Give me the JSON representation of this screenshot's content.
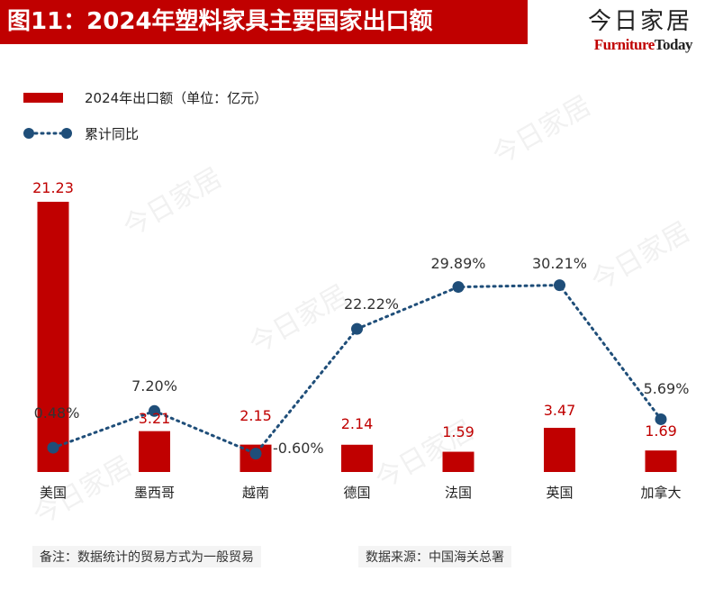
{
  "title": "图11：2024年塑料家具主要国家出口额",
  "brand": {
    "name_cn": "今日家居",
    "name_en_a": "Furniture",
    "name_en_b": "Today"
  },
  "notes": "备注：数据统计的贸易方式为一般贸易",
  "source": "数据来源：中国海关总署",
  "colors": {
    "bar": "#c00000",
    "line": "#1f4e79"
  },
  "chart_data": {
    "type": "bar",
    "categories": [
      "美国",
      "墨西哥",
      "越南",
      "德国",
      "法国",
      "英国",
      "加拿大"
    ],
    "series": [
      {
        "name": "2024年出口额（单位：亿元）",
        "type": "bar",
        "values": [
          21.23,
          3.21,
          2.15,
          2.14,
          1.59,
          3.47,
          1.69
        ],
        "labels": [
          "21.23",
          "3.21",
          "2.15",
          "2.14",
          "1.59",
          "3.47",
          "1.69"
        ]
      },
      {
        "name": "累计同比",
        "type": "line",
        "values": [
          0.48,
          7.2,
          -0.6,
          22.22,
          29.89,
          30.21,
          5.69
        ],
        "labels": [
          "0.48%",
          "7.20%",
          "-0.60%",
          "22.22%",
          "29.89%",
          "30.21%",
          "5.69%"
        ]
      }
    ]
  }
}
